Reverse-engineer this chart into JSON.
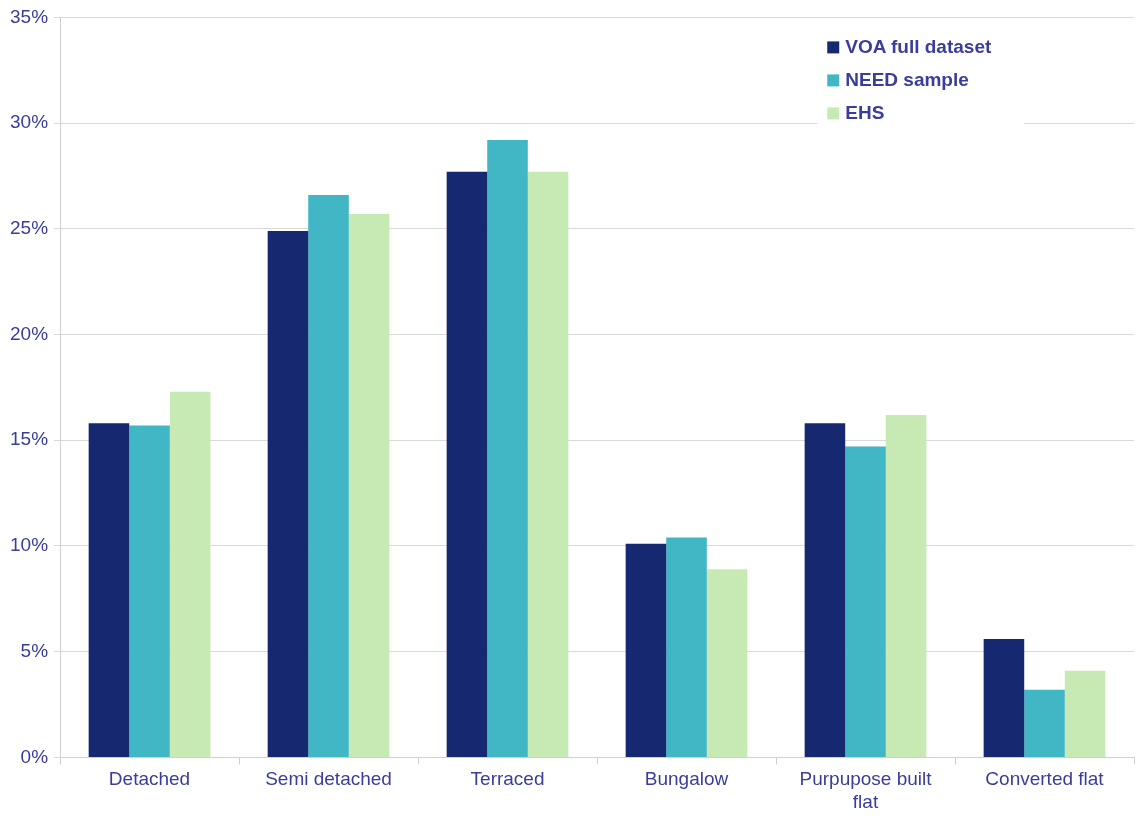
{
  "chart_data": {
    "type": "bar",
    "categories": [
      "Detached",
      "Semi detached",
      "Terraced",
      "Bungalow",
      "Purpupose built flat",
      "Converted flat"
    ],
    "series": [
      {
        "name": "VOA full dataset",
        "color": "#162870",
        "values": [
          15.8,
          24.9,
          27.7,
          10.1,
          15.8,
          5.6
        ]
      },
      {
        "name": "NEED sample",
        "color": "#41b6c4",
        "values": [
          15.7,
          26.6,
          29.2,
          10.4,
          14.7,
          3.2
        ]
      },
      {
        "name": "EHS",
        "color": "#c7e9b4",
        "values": [
          17.3,
          25.7,
          27.7,
          8.9,
          16.2,
          4.1
        ]
      }
    ],
    "ylim": [
      0,
      35
    ],
    "yticks": [
      {
        "value": 0,
        "label": "0%"
      },
      {
        "value": 5,
        "label": "5%"
      },
      {
        "value": 10,
        "label": "10%"
      },
      {
        "value": 15,
        "label": "15%"
      },
      {
        "value": 20,
        "label": "20%"
      },
      {
        "value": 25,
        "label": "25%"
      },
      {
        "value": 30,
        "label": "30%"
      },
      {
        "value": 35,
        "label": "35%"
      }
    ],
    "grid": "y",
    "legend": "top right"
  }
}
